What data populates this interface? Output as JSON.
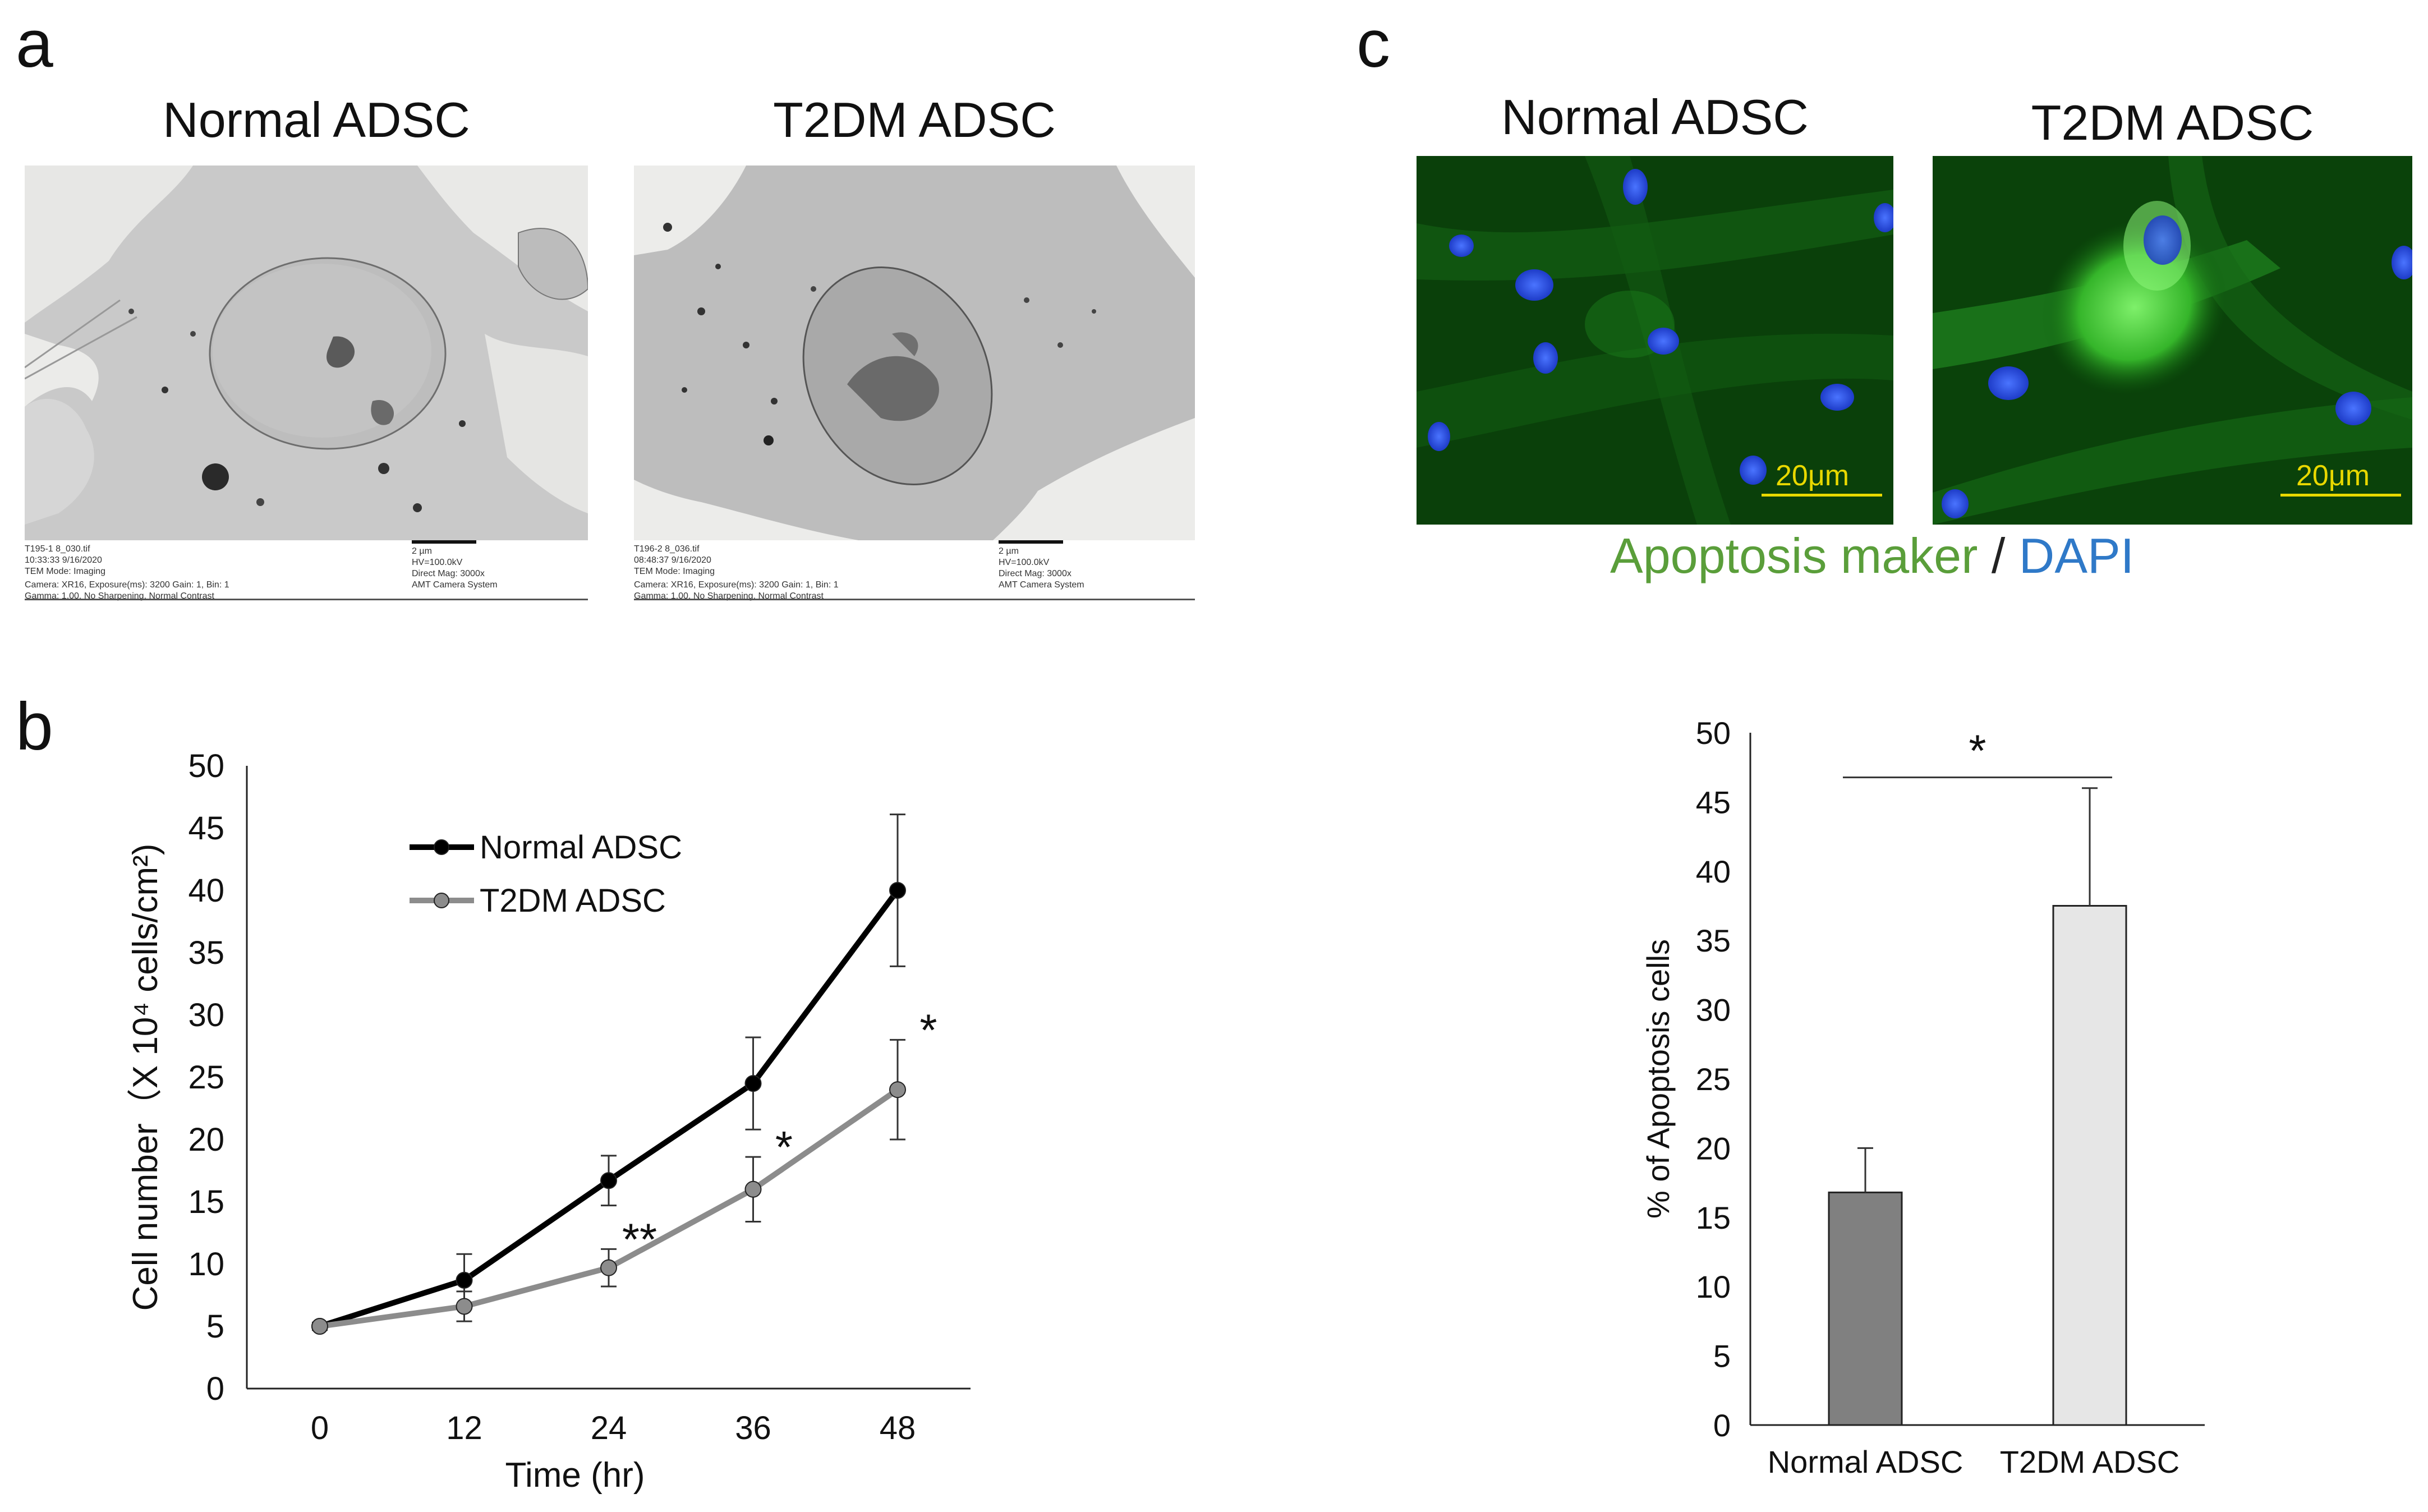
{
  "panel_a": {
    "letter": "a",
    "left_title": "Normal ADSC",
    "right_title": "T2DM ADSC",
    "left_meta": {
      "col1": [
        "T195-1 8_030.tif",
        "10:33:33 9/16/2020",
        "TEM Mode: Imaging"
      ],
      "col2": [
        "2 µm",
        "HV=100.0kV",
        "Direct Mag: 3000x",
        "AMT Camera System"
      ],
      "bottom": [
        "Camera: XR16, Exposure(ms): 3200 Gain: 1, Bin: 1",
        "Gamma: 1.00, No Sharpening, Normal Contrast"
      ]
    },
    "right_meta": {
      "col1": [
        "T196-2 8_036.tif",
        "08:48:37 9/16/2020",
        "TEM Mode: Imaging"
      ],
      "col2": [
        "2 µm",
        "HV=100.0kV",
        "Direct Mag: 3000x",
        "AMT Camera System"
      ],
      "bottom": [
        "Camera: XR16, Exposure(ms): 3200 Gain: 1, Bin: 1",
        "Gamma: 1.00, No Sharpening, Normal Contrast"
      ]
    }
  },
  "panel_c_images": {
    "letter": "c",
    "left_title": "Normal ADSC",
    "right_title": "T2DM ADSC",
    "scale_label": "20μm",
    "caption_green": "Apoptosis maker",
    "caption_sep": " / ",
    "caption_blue": "DAPI",
    "colors": {
      "green": "#5a9e3a",
      "blue": "#2f79c8"
    }
  },
  "panel_b": {
    "letter": "b"
  },
  "chart_data": [
    {
      "type": "line",
      "xlabel": "Time (hr)",
      "ylabel": "Cell number（X 10⁴ cells/cm²)",
      "x": [
        0,
        12,
        24,
        36,
        48
      ],
      "xlim": [
        0,
        48
      ],
      "ylim": [
        0,
        50
      ],
      "y_ticks": [
        0,
        5,
        10,
        15,
        20,
        25,
        30,
        35,
        40,
        45,
        50
      ],
      "legend_placement": "top-left",
      "grid": false,
      "series": [
        {
          "name": "Normal ADSC",
          "color": "#000000",
          "values": [
            5.0,
            8.7,
            16.7,
            24.5,
            40.0
          ],
          "errors": [
            0.3,
            2.1,
            2.0,
            3.7,
            6.1
          ],
          "significance": [
            "",
            "",
            "",
            "",
            ""
          ]
        },
        {
          "name": "T2DM ADSC",
          "color": "#8c8c8c",
          "values": [
            5.0,
            6.6,
            9.7,
            16.0,
            24.0
          ],
          "errors": [
            0.3,
            1.2,
            1.5,
            2.6,
            4.0
          ],
          "significance": [
            "",
            "",
            "**",
            "*",
            "*"
          ]
        }
      ]
    },
    {
      "type": "bar",
      "categories": [
        "Normal ADSC",
        "T2DM ADSC"
      ],
      "values": [
        16.8,
        37.5
      ],
      "errors": [
        3.2,
        8.5
      ],
      "colors": [
        "#808080",
        "#e6e6e6"
      ],
      "ylabel": "% of Apoptosis cells",
      "ylim": [
        0,
        50
      ],
      "y_ticks": [
        0,
        5,
        10,
        15,
        20,
        25,
        30,
        35,
        40,
        45,
        50
      ],
      "significance": "*",
      "grid": false
    }
  ]
}
